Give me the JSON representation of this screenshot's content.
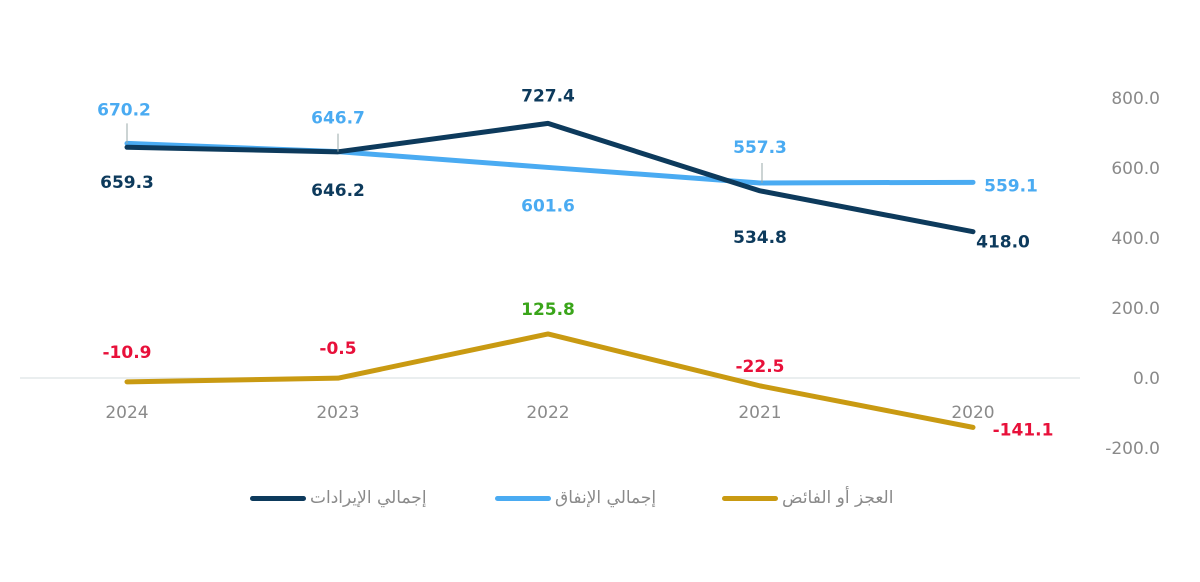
{
  "chart_data": {
    "type": "line",
    "categories": [
      "2024",
      "2023",
      "2022",
      "2021",
      "2020"
    ],
    "ylim": [
      -200,
      800
    ],
    "yticks": [
      "800.0",
      "600.0",
      "400.0",
      "200.0",
      "0.0",
      "-200.0"
    ],
    "grid": false,
    "legend_position": "bottom",
    "series": [
      {
        "name": "إجمالي الإيرادات",
        "color": "#0d3a5c",
        "values": [
          659.3,
          646.2,
          727.4,
          534.8,
          418.0
        ],
        "labels": [
          "659.3",
          "646.2",
          "727.4",
          "534.8",
          "418.0"
        ]
      },
      {
        "name": "إجمالي الإنفاق",
        "color": "#4aabf2",
        "values": [
          670.2,
          646.7,
          601.6,
          557.3,
          559.1
        ],
        "labels": [
          "670.2",
          "646.7",
          "601.6",
          "557.3",
          "559.1"
        ]
      },
      {
        "name": "العجز أو الفائض",
        "color": "#c99a12",
        "values": [
          -10.9,
          -0.5,
          125.8,
          -22.5,
          -141.1
        ],
        "labels": [
          "-10.9",
          "-0.5",
          "125.8",
          "-22.5",
          "-141.1"
        ]
      }
    ],
    "colors": {
      "negative_label": "#e8103a",
      "positive_label": "#3aa51a",
      "axis_text": "#8a8a8a"
    }
  }
}
